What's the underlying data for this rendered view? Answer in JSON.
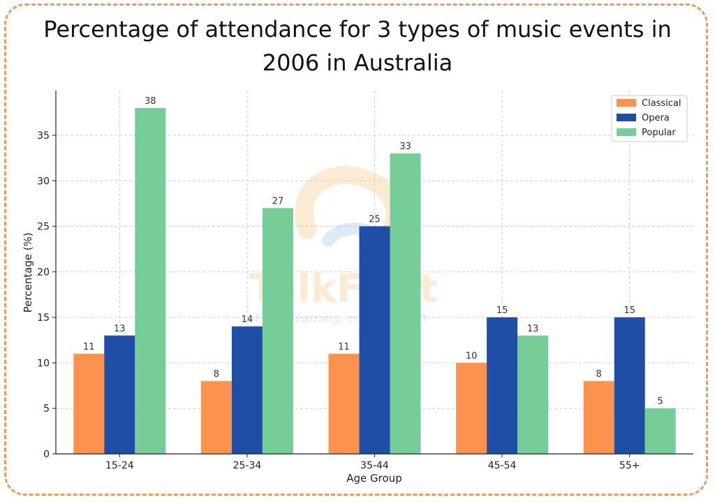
{
  "chart_data": {
    "type": "bar",
    "title_lines": [
      "Percentage of attendance for 3 types of music events in",
      "2006 in Australia"
    ],
    "xlabel": "Age Group",
    "ylabel": "Percentage (%)",
    "categories": [
      "15-24",
      "25-34",
      "35-44",
      "45-54",
      "55+"
    ],
    "series": [
      {
        "name": "Classical",
        "color": "#fc924e",
        "values": [
          11,
          8,
          11,
          10,
          8
        ]
      },
      {
        "name": "Opera",
        "color": "#1f4ea6",
        "values": [
          13,
          14,
          25,
          15,
          15
        ]
      },
      {
        "name": "Popular",
        "color": "#77cd98",
        "values": [
          38,
          27,
          33,
          13,
          5
        ]
      }
    ],
    "ylim": [
      0,
      39.9
    ],
    "yticks": [
      0,
      5,
      10,
      15,
      20,
      25,
      30,
      35
    ],
    "grid": true,
    "legend_position": "top-right"
  },
  "watermark": {
    "brand": "TalkFirst",
    "tagline": "Enjoy learning, enjoy English"
  }
}
